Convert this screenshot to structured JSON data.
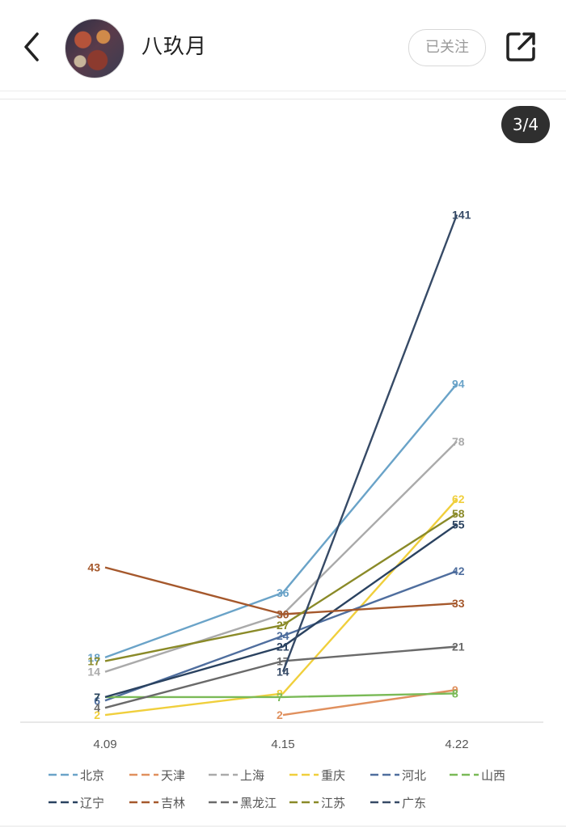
{
  "header": {
    "back_icon": "chevron-left-icon",
    "username": "八玖月",
    "follow_label": "已关注",
    "share_icon": "share-external-icon"
  },
  "gallery": {
    "page_indicator": "3/4"
  },
  "chart_data": {
    "type": "line",
    "title": "",
    "xlabel": "",
    "ylabel": "",
    "categories": [
      "4.09",
      "4.15",
      "4.22"
    ],
    "ylim": [
      0,
      150
    ],
    "grid": false,
    "legend_position": "bottom",
    "series": [
      {
        "name": "北京",
        "color": "#6aa3c8",
        "values": [
          18,
          36,
          94
        ]
      },
      {
        "name": "天津",
        "color": "#e0905e",
        "values": [
          null,
          2,
          9
        ]
      },
      {
        "name": "上海",
        "color": "#aaaaaa",
        "values": [
          14,
          30,
          78
        ]
      },
      {
        "name": "重庆",
        "color": "#f0cf3c",
        "values": [
          2,
          8,
          62
        ]
      },
      {
        "name": "河北",
        "color": "#4f6e9e",
        "values": [
          6,
          24,
          42
        ]
      },
      {
        "name": "山西",
        "color": "#7aba57",
        "values": [
          7,
          7,
          8
        ]
      },
      {
        "name": "辽宁",
        "color": "#2a4260",
        "values": [
          7,
          21,
          55
        ]
      },
      {
        "name": "吉林",
        "color": "#a5582c",
        "values": [
          43,
          30,
          33
        ]
      },
      {
        "name": "黑龙江",
        "color": "#6a6a6a",
        "values": [
          4,
          17,
          21
        ]
      },
      {
        "name": "江苏",
        "color": "#8a8a28",
        "values": [
          17,
          27,
          58
        ]
      },
      {
        "name": "广东",
        "color": "#364a66",
        "values": [
          null,
          14,
          141
        ]
      }
    ]
  }
}
